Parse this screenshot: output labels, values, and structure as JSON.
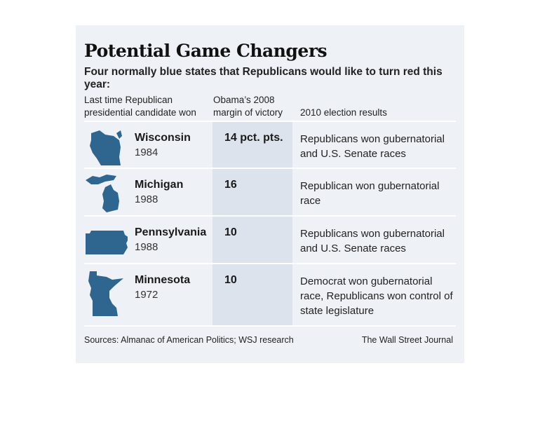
{
  "title": "Potential Game Changers",
  "subtitle": "Four normally blue states that Republicans would like to turn red this year:",
  "headers": {
    "col1": "Last time Republican presidential candidate won",
    "col2": "Obama’s 2008 margin of victory",
    "col3": "2010 election results"
  },
  "rows": [
    {
      "state": "Wisconsin",
      "year": "1984",
      "margin": "14 pct. pts.",
      "result": "Republicans won gubernatorial and U.S. Senate races",
      "icon": "wisconsin-map-icon"
    },
    {
      "state": "Michigan",
      "year": "1988",
      "margin": "16",
      "result": "Republican won gubernatorial race",
      "icon": "michigan-map-icon"
    },
    {
      "state": "Pennsylvania",
      "year": "1988",
      "margin": "10",
      "result": "Republicans won gubernatorial and U.S. Senate races",
      "icon": "pennsylvania-map-icon"
    },
    {
      "state": "Minnesota",
      "year": "1972",
      "margin": "10",
      "result": "Democrat won gubernatorial race, Republicans won control of state legislature",
      "icon": "minnesota-map-icon"
    }
  ],
  "footer": {
    "sources": "Sources: Almanac of American Politics; WSJ research",
    "credit": "The Wall Street Journal"
  },
  "colors": {
    "map_fill": "#2f6690",
    "card_bg": "#eef1f6",
    "highlight_col": "#dde3ec"
  }
}
